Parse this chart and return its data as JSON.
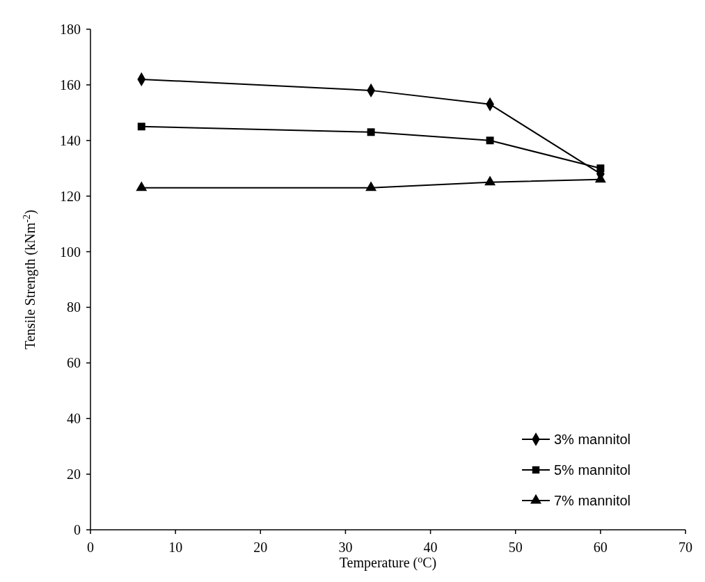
{
  "chart_data": {
    "type": "line",
    "xlabel": "Temperature ($^{o}$C)",
    "ylabel": "Tensile Strength (kNm$^{-2}$)",
    "xlim": [
      0,
      70
    ],
    "xticks": [
      0,
      10,
      20,
      30,
      40,
      50,
      60,
      70
    ],
    "ylim": [
      0,
      180
    ],
    "yticks": [
      0,
      20,
      40,
      60,
      80,
      100,
      120,
      140,
      160,
      180
    ],
    "x": [
      6,
      33,
      47,
      60
    ],
    "series": [
      {
        "name": "3% mannitol",
        "color": "#000000",
        "marker": "diamond",
        "values": [
          162,
          158,
          153,
          128
        ]
      },
      {
        "name": "5% mannitol",
        "color": "#000000",
        "marker": "square",
        "values": [
          145,
          143,
          140,
          130
        ]
      },
      {
        "name": "7% mannitol",
        "color": "#000000",
        "marker": "triangle",
        "values": [
          123,
          123,
          125,
          126
        ]
      }
    ],
    "legend": "bottom right",
    "grid": false,
    "line_style": "solid"
  }
}
